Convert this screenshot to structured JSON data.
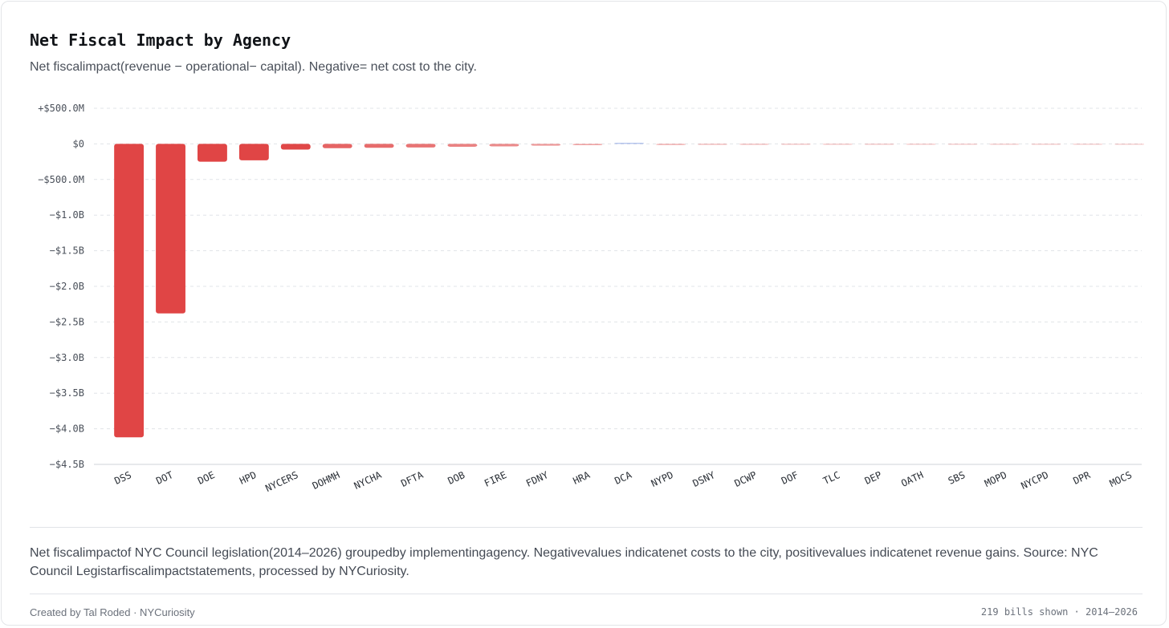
{
  "card": {
    "title": "Net Fiscal Impact by Agency",
    "subtitle": "Net fiscalimpact(revenue − operational− capital).  Negative= net cost to the city.",
    "footnote": "Net fiscalimpactof NYC  Council legislation(2014–2026)  groupedby implementingagency.  Negativevalues indicatenet costs to the city, positivevalues indicatenet revenue gains.  Source:  NYC  Council Legistarfiscalimpactstatements, processed by NYCuriosity.",
    "credit": "Created by Tal Roded · NYCuriosity",
    "meta": "219 bills shown  ·  2014–2026"
  },
  "colors": {
    "negative": "#e04545",
    "positive": "#4f74d6",
    "grid": "#e1e4e8",
    "axis": "#cfd3d8"
  },
  "chart_data": {
    "type": "bar",
    "title": "Net Fiscal Impact by Agency",
    "xlabel": "",
    "ylabel": "",
    "ylim": [
      -4.5,
      0.5
    ],
    "y_unit": "billions USD",
    "y_ticks": [
      {
        "value": 0.5,
        "label": "+$500.0M"
      },
      {
        "value": 0,
        "label": "$0"
      },
      {
        "value": -0.5,
        "label": "−$500.0M"
      },
      {
        "value": -1.0,
        "label": "−$1.0B"
      },
      {
        "value": -1.5,
        "label": "−$1.5B"
      },
      {
        "value": -2.0,
        "label": "−$2.0B"
      },
      {
        "value": -2.5,
        "label": "−$2.5B"
      },
      {
        "value": -3.0,
        "label": "−$3.0B"
      },
      {
        "value": -3.5,
        "label": "−$3.5B"
      },
      {
        "value": -4.0,
        "label": "−$4.0B"
      },
      {
        "value": -4.5,
        "label": "−$4.5B"
      }
    ],
    "grid": true,
    "legend": "none",
    "categories": [
      "DSS",
      "DOT",
      "DOE",
      "HPD",
      "NYCERS",
      "DOHMH",
      "NYCHA",
      "DFTA",
      "DOB",
      "FIRE",
      "FDNY",
      "HRA",
      "DCA",
      "NYPD",
      "DSNY",
      "DCWP",
      "DOF",
      "TLC",
      "DEP",
      "OATH",
      "SBS",
      "MOPD",
      "NYCPD",
      "DPR",
      "MOCS"
    ],
    "values": [
      -4.12,
      -2.38,
      -0.25,
      -0.23,
      -0.08,
      -0.06,
      -0.055,
      -0.05,
      -0.04,
      -0.035,
      -0.025,
      -0.018,
      0.015,
      -0.015,
      -0.013,
      -0.012,
      -0.01,
      -0.009,
      -0.008,
      -0.006,
      -0.005,
      -0.004,
      -0.004,
      -0.003,
      -0.002
    ]
  }
}
